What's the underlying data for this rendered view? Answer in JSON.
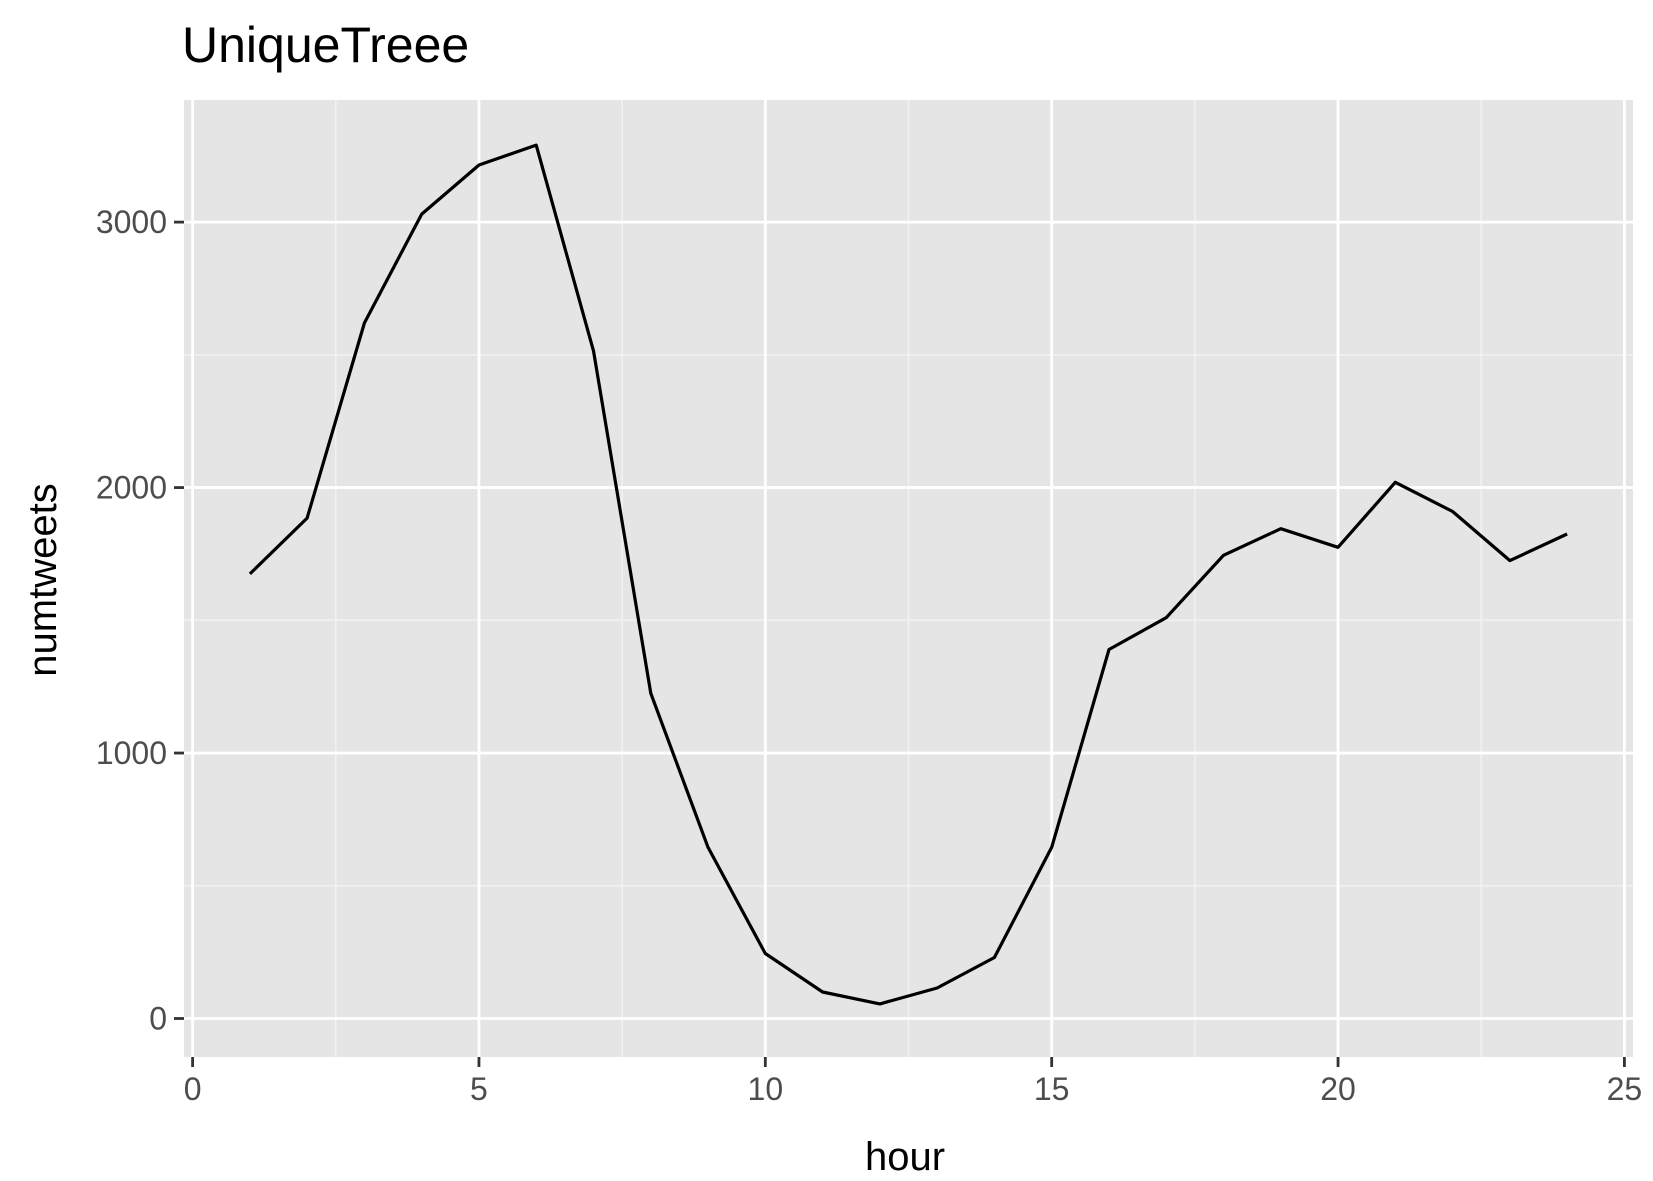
{
  "chart_data": {
    "type": "line",
    "title": "UniqueTreee",
    "xlabel": "hour",
    "ylabel": "numtweets",
    "xlim": [
      -0.15,
      25.15
    ],
    "ylim": [
      -145,
      3460
    ],
    "x_ticks": [
      0,
      5,
      10,
      15,
      20,
      25
    ],
    "x_tick_labels": [
      "0",
      "5",
      "10",
      "15",
      "20",
      "25"
    ],
    "x_minor_ticks": [
      2.5,
      7.5,
      12.5,
      17.5,
      22.5
    ],
    "y_ticks": [
      0,
      1000,
      2000,
      3000
    ],
    "y_tick_labels": [
      "0",
      "1000",
      "2000",
      "3000"
    ],
    "y_minor_ticks": [
      500,
      1500,
      2500
    ],
    "grid": true,
    "legend": "none",
    "series": [
      {
        "x": [
          1,
          2,
          3,
          4,
          5,
          6,
          7,
          8,
          9,
          10,
          11,
          12,
          13,
          14,
          15,
          16,
          17,
          18,
          19,
          20,
          21,
          22,
          23,
          24
        ],
        "values": [
          1675,
          1885,
          2620,
          3030,
          3215,
          3290,
          2515,
          1225,
          645,
          245,
          100,
          55,
          115,
          230,
          645,
          1390,
          1510,
          1745,
          1845,
          1775,
          2020,
          1910,
          1725,
          1825
        ]
      }
    ],
    "colors": {
      "panel_background": "#e5e5e5",
      "grid_major": "#ffffff",
      "grid_minor": "#f2f2f2",
      "line": "#000000",
      "tick_mark": "#333333",
      "tick_label": "#4d4d4d"
    }
  }
}
